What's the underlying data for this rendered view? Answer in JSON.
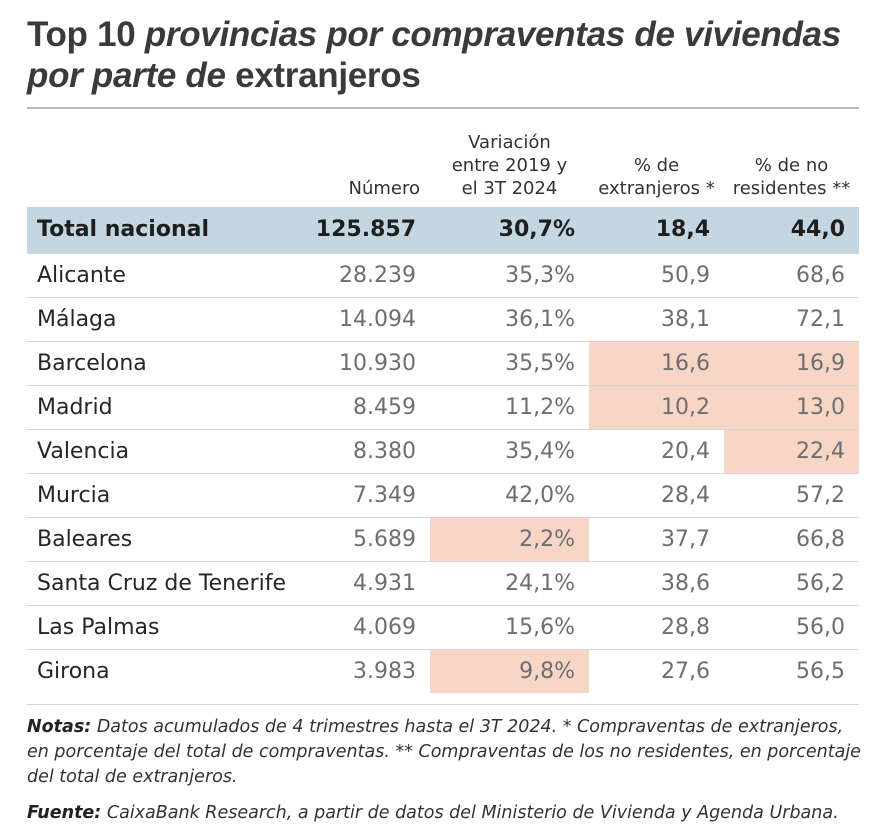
{
  "title": {
    "part1": "Top 10 ",
    "part2": "provincias por compraventas de viviendas por parte de",
    "part3": " extranjeros"
  },
  "chart_data": {
    "type": "table",
    "columns": [
      "",
      "Número",
      "Variación entre 2019 y el 3T 2024",
      "% de extranjeros *",
      "% de no residentes **"
    ],
    "total": {
      "name": "Total nacional",
      "numero": "125.857",
      "variacion": "30,7%",
      "pct_extranjeros": "18,4",
      "pct_no_residentes": "44,0"
    },
    "rows": [
      {
        "name": "Alicante",
        "numero": "28.239",
        "variacion": "35,3%",
        "pct_extranjeros": "50,9",
        "pct_no_residentes": "68,6"
      },
      {
        "name": "Málaga",
        "numero": "14.094",
        "variacion": "36,1%",
        "pct_extranjeros": "38,1",
        "pct_no_residentes": "72,1"
      },
      {
        "name": "Barcelona",
        "numero": "10.930",
        "variacion": "35,5%",
        "pct_extranjeros": "16,6",
        "pct_no_residentes": "16,9"
      },
      {
        "name": "Madrid",
        "numero": "8.459",
        "variacion": "11,2%",
        "pct_extranjeros": "10,2",
        "pct_no_residentes": "13,0"
      },
      {
        "name": "Valencia",
        "numero": "8.380",
        "variacion": "35,4%",
        "pct_extranjeros": "20,4",
        "pct_no_residentes": "22,4"
      },
      {
        "name": "Murcia",
        "numero": "7.349",
        "variacion": "42,0%",
        "pct_extranjeros": "28,4",
        "pct_no_residentes": "57,2"
      },
      {
        "name": "Baleares",
        "numero": "5.689",
        "variacion": "2,2%",
        "pct_extranjeros": "37,7",
        "pct_no_residentes": "66,8"
      },
      {
        "name": "Santa Cruz de Tenerife",
        "numero": "4.931",
        "variacion": "24,1%",
        "pct_extranjeros": "38,6",
        "pct_no_residentes": "56,2"
      },
      {
        "name": "Las Palmas",
        "numero": "4.069",
        "variacion": "15,6%",
        "pct_extranjeros": "28,8",
        "pct_no_residentes": "56,0"
      },
      {
        "name": "Girona",
        "numero": "3.983",
        "variacion": "9,8%",
        "pct_extranjeros": "27,6",
        "pct_no_residentes": "56,5"
      }
    ],
    "highlight_color": "#f8d6c6",
    "total_row_color": "#c4d6e1"
  },
  "notes": {
    "label": "Notas:",
    "text": " Datos acumulados de 4 trimestres hasta el 3T 2024. * Compraventas de extranjeros, en porcentaje del total de compraventas. ** Compraventas de los no residentes, en porcentaje del total de extranjeros."
  },
  "source": {
    "label": "Fuente:",
    "text": " CaixaBank Research, a partir de datos del Ministerio de Vivienda y Agenda Urbana."
  }
}
